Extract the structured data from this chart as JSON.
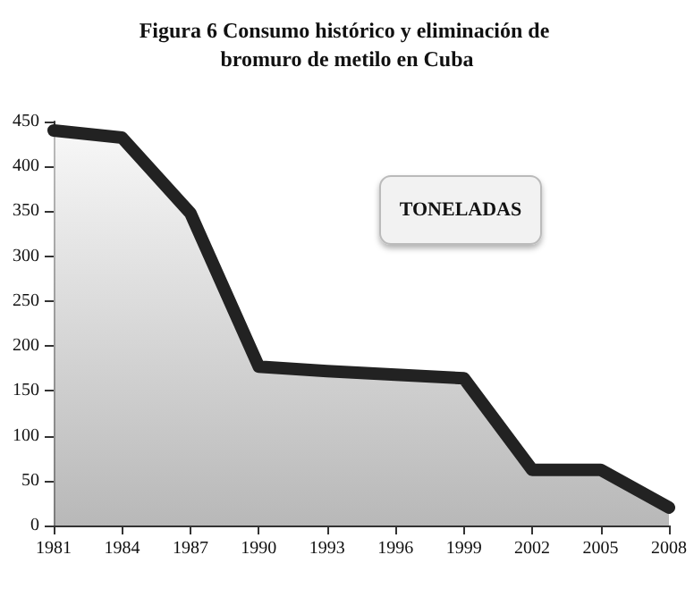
{
  "chart_data": {
    "type": "area",
    "title": "Figura 6 Consumo histórico y eliminación de bromuro de metilo en Cuba",
    "categories": [
      "1981",
      "1984",
      "1987",
      "1990",
      "1993",
      "1996",
      "1999",
      "2002",
      "2005",
      "2008"
    ],
    "series": [
      {
        "color": "#222222",
        "values": [
          440,
          432,
          348,
          177,
          172,
          168,
          164,
          62,
          62,
          20
        ]
      }
    ],
    "ylim": [
      0,
      450
    ],
    "yticks": [
      0,
      50,
      100,
      150,
      200,
      250,
      300,
      350,
      400,
      450
    ],
    "annotations": [
      "TONELADAS"
    ],
    "grid": false
  }
}
